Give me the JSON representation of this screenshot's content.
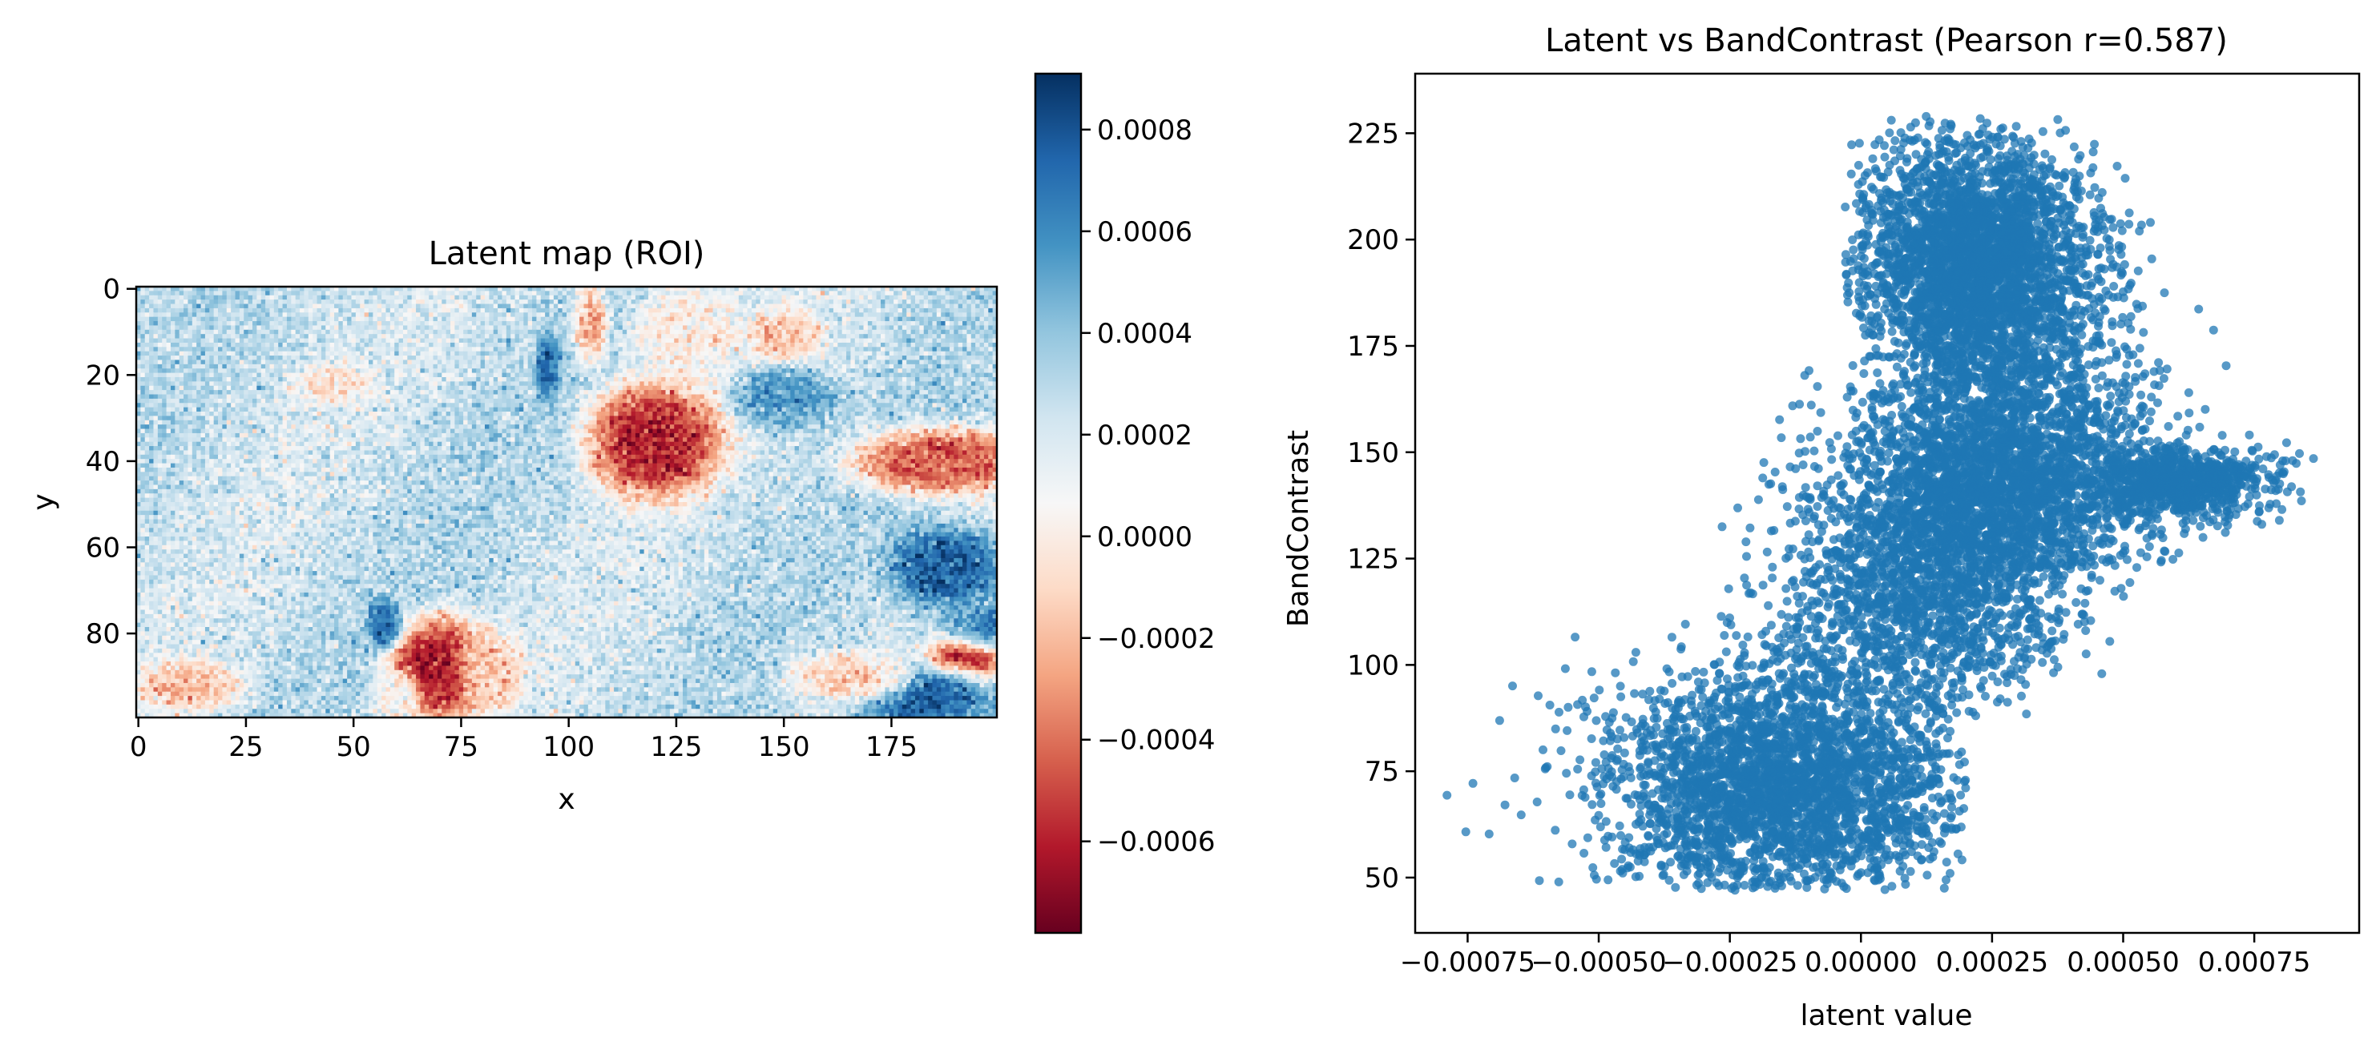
{
  "chart_data": [
    {
      "type": "heatmap",
      "title": "Latent map (ROI)",
      "xlabel": "x",
      "ylabel": "y",
      "x_range": [
        0,
        199
      ],
      "y_range": [
        0,
        99
      ],
      "y_inverted": true,
      "xticks": [
        "0",
        "25",
        "50",
        "75",
        "100",
        "125",
        "150",
        "175"
      ],
      "yticks": [
        "0",
        "20",
        "40",
        "60",
        "80"
      ],
      "colormap": "RdBu",
      "colorbar": {
        "vmin": -0.00078,
        "vmax": 0.00091,
        "ticks": [
          "0.0008",
          "0.0006",
          "0.0004",
          "0.0002",
          "0.0000",
          "−0.0002",
          "−0.0004",
          "−0.0006"
        ]
      },
      "background_value": 0.00025,
      "regions": [
        {
          "cx": 120,
          "cy": 35,
          "rx": 16,
          "ry": 14,
          "v": -0.0006
        },
        {
          "cx": 128,
          "cy": 10,
          "rx": 14,
          "ry": 12,
          "v": 0.0
        },
        {
          "cx": 105,
          "cy": 8,
          "rx": 4,
          "ry": 10,
          "v": -0.0002
        },
        {
          "cx": 150,
          "cy": 12,
          "rx": 9,
          "ry": 8,
          "v": -0.00015
        },
        {
          "cx": 70,
          "cy": 88,
          "rx": 12,
          "ry": 12,
          "v": -0.00065
        },
        {
          "cx": 82,
          "cy": 88,
          "rx": 8,
          "ry": 10,
          "v": -0.00015
        },
        {
          "cx": 60,
          "cy": 95,
          "rx": 6,
          "ry": 6,
          "v": 0.0
        },
        {
          "cx": 187,
          "cy": 40,
          "rx": 22,
          "ry": 8,
          "v": -0.00045
        },
        {
          "cx": 192,
          "cy": 85,
          "rx": 8,
          "ry": 12,
          "v": -0.0006
        },
        {
          "cx": 188,
          "cy": 65,
          "rx": 14,
          "ry": 10,
          "v": 0.00075
        },
        {
          "cx": 183,
          "cy": 95,
          "rx": 18,
          "ry": 7,
          "v": 0.00075
        },
        {
          "cx": 165,
          "cy": 90,
          "rx": 14,
          "ry": 6,
          "v": -0.0001
        },
        {
          "cx": 12,
          "cy": 92,
          "rx": 12,
          "ry": 6,
          "v": -0.0002
        },
        {
          "cx": 95,
          "cy": 18,
          "rx": 3,
          "ry": 8,
          "v": 0.0007
        },
        {
          "cx": 45,
          "cy": 22,
          "rx": 10,
          "ry": 5,
          "v": -5e-05
        },
        {
          "cx": 150,
          "cy": 25,
          "rx": 12,
          "ry": 8,
          "v": 0.00055
        },
        {
          "cx": 57,
          "cy": 78,
          "rx": 4,
          "ry": 6,
          "v": 0.0007
        },
        {
          "cx": 205,
          "cy": 78,
          "rx": 22,
          "ry": 6,
          "v": 0.00065
        }
      ]
    },
    {
      "type": "scatter",
      "title": "Latent vs BandContrast (Pearson r=0.587)",
      "xlabel": "latent value",
      "ylabel": "BandContrast",
      "xlim": [
        -0.00085,
        0.00095
      ],
      "ylim": [
        37,
        239
      ],
      "xticks": [
        -0.00075,
        -0.0005,
        -0.00025,
        0.0,
        0.00025,
        0.0005,
        0.00075
      ],
      "xtick_labels": [
        "−0.00075",
        "−0.00050",
        "−0.00025",
        "0.00000",
        "0.00025",
        "0.00050",
        "0.00075"
      ],
      "yticks": [
        50,
        75,
        100,
        125,
        150,
        175,
        200,
        225
      ],
      "color": "#1f77b4",
      "pearson_r": 0.587,
      "clusters": [
        {
          "n": 3200,
          "cx": -0.00015,
          "cy": 72,
          "sx": 0.00017,
          "sy": 14,
          "xmin": -0.0008,
          "xmax": 0.0002,
          "ymin": 47,
          "ymax": 112
        },
        {
          "n": 3200,
          "cx": 0.00022,
          "cy": 195,
          "sx": 0.00011,
          "sy": 14,
          "xmin": -3e-05,
          "xmax": 0.00058,
          "ymin": 160,
          "ymax": 229
        },
        {
          "n": 2600,
          "cx": 0.00025,
          "cy": 142,
          "sx": 0.00015,
          "sy": 12,
          "xmin": -0.0002,
          "xmax": 0.00082,
          "ymin": 100,
          "ymax": 172
        },
        {
          "n": 1400,
          "cx": 0.00012,
          "cy": 115,
          "sx": 0.00014,
          "sy": 13,
          "xmin": -0.0003,
          "xmax": 0.0006,
          "ymin": 85,
          "ymax": 140
        },
        {
          "n": 900,
          "cx": 0.0006,
          "cy": 143,
          "sx": 9e-05,
          "sy": 4,
          "xmin": 0.0003,
          "xmax": 0.0009,
          "ymin": 128,
          "ymax": 158
        },
        {
          "n": 700,
          "cx": 0.0003,
          "cy": 168,
          "sx": 0.00014,
          "sy": 12,
          "xmin": 0.0,
          "xmax": 0.0007,
          "ymin": 140,
          "ymax": 200
        }
      ]
    }
  ]
}
